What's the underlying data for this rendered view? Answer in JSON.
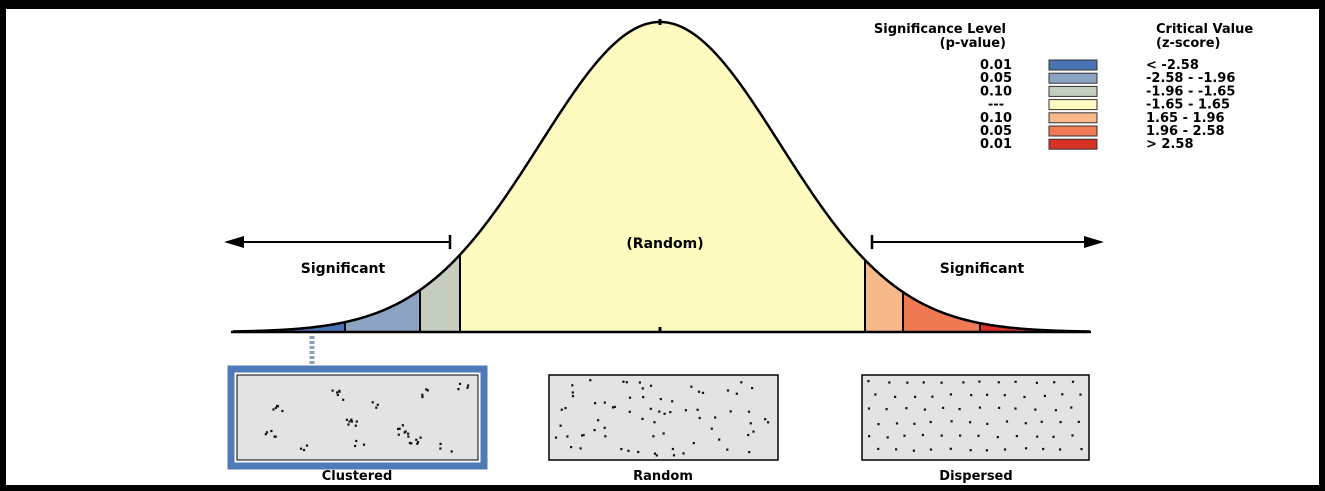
{
  "legend": {
    "significance_header": [
      "Significance Level",
      "(p-value)"
    ],
    "critical_header": [
      "Critical Value",
      "(z-score)"
    ],
    "rows": [
      {
        "p": "0.01",
        "z": "< -2.58",
        "color": "#4a73b3"
      },
      {
        "p": "0.05",
        "z": "-2.58 - -1.96",
        "color": "#8ca3c2"
      },
      {
        "p": "0.10",
        "z": "-1.96 - -1.65",
        "color": "#c5cdbf"
      },
      {
        "p": "---",
        "z": "-1.65 - 1.65",
        "color": "#fdfbc0"
      },
      {
        "p": "0.10",
        "z": "1.65 - 1.96",
        "color": "#f8b98a"
      },
      {
        "p": "0.05",
        "z": "1.96 - 2.58",
        "color": "#ef7a53"
      },
      {
        "p": "0.01",
        "z": "> 2.58",
        "color": "#d83227"
      }
    ]
  },
  "labels": {
    "significant_left": "Significant",
    "random_center": "(Random)",
    "significant_right": "Significant"
  },
  "patterns": [
    {
      "label": "Clustered",
      "highlighted": true
    },
    {
      "label": "Random",
      "highlighted": false
    },
    {
      "label": "Dispersed",
      "highlighted": false
    }
  ],
  "colors": {
    "highlight_border": "#4f7ab8",
    "panel_fill": "#e3e3e3",
    "curve_stroke": "#000000"
  }
}
